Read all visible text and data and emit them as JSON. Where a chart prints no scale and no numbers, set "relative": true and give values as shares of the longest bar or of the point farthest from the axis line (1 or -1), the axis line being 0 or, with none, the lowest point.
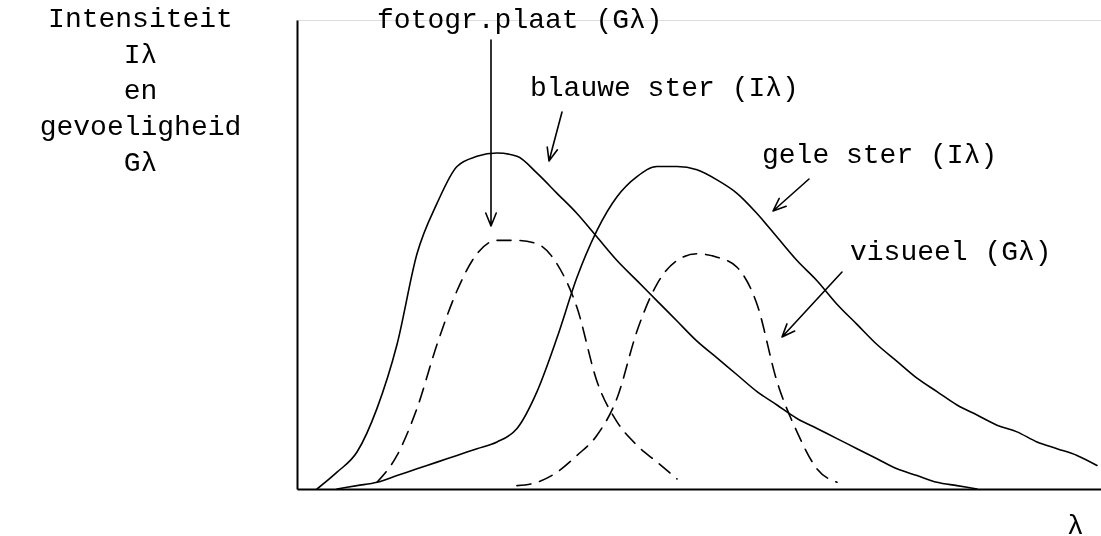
{
  "chart_data": {
    "type": "line",
    "relative": true,
    "ylabel": "Intensiteit\nIλ\nen\ngevoeligheid\nGλ",
    "xlabel": "λ",
    "annotations": [
      "fotogr.plaat (Gλ)"
    ],
    "categories": [
      null,
      null,
      null,
      null,
      null,
      null,
      null,
      null,
      null,
      null,
      null,
      null,
      null,
      null,
      null,
      null,
      null,
      null,
      null,
      null,
      null,
      null,
      null,
      null,
      null,
      null,
      null,
      null,
      null,
      null,
      null,
      null,
      null,
      null,
      null,
      null,
      null,
      null,
      null,
      null
    ],
    "series": [
      {
        "name": "blauwe ster (Iλ)",
        "color": "#000000",
        "line_style": "solid",
        "values": [
          0,
          0.05,
          0.11,
          0.24,
          0.43,
          0.7,
          0.85,
          0.96,
          0.99,
          1.0,
          0.99,
          0.94,
          0.88,
          0.82,
          0.75,
          0.68,
          0.62,
          0.56,
          0.5,
          0.44,
          0.39,
          0.34,
          0.29,
          0.25,
          0.21,
          0.18,
          0.15,
          0.12,
          0.09,
          0.06,
          0.04,
          0.02,
          0.01,
          0,
          null,
          null,
          null,
          null,
          null,
          null
        ]
      },
      {
        "name": "gele ster (Iλ)",
        "color": "#000000",
        "line_style": "solid",
        "values": [
          null,
          0,
          0.01,
          0.02,
          0.04,
          0.06,
          0.08,
          0.1,
          0.12,
          0.14,
          0.18,
          0.29,
          0.45,
          0.63,
          0.77,
          0.87,
          0.93,
          0.96,
          0.96,
          0.95,
          0.92,
          0.88,
          0.82,
          0.75,
          0.68,
          0.62,
          0.55,
          0.49,
          0.43,
          0.38,
          0.33,
          0.29,
          0.25,
          0.22,
          0.19,
          0.17,
          0.14,
          0.12,
          0.1,
          0.07
        ]
      },
      {
        "color": "#000000",
        "line_style": "dashed",
        "values": [
          null,
          null,
          null,
          0.02,
          0.1,
          0.24,
          0.43,
          0.59,
          0.7,
          0.74,
          0.74,
          0.73,
          0.67,
          0.54,
          0.32,
          0.2,
          0.13,
          0.08,
          0.03,
          null,
          null,
          null,
          null,
          null,
          null,
          null,
          null,
          null,
          null,
          null,
          null,
          null,
          null,
          null,
          null,
          null,
          null,
          null,
          null,
          null
        ]
      },
      {
        "name": "visueel (Gλ)",
        "color": "#000000",
        "line_style": "dashed",
        "values": [
          null,
          null,
          null,
          null,
          null,
          null,
          null,
          null,
          null,
          null,
          0.01,
          0.02,
          0.05,
          0.1,
          0.16,
          0.27,
          0.47,
          0.61,
          0.68,
          0.7,
          0.69,
          0.66,
          0.55,
          0.32,
          0.17,
          0.06,
          0.02,
          null,
          null,
          null,
          null,
          null,
          null,
          null,
          null,
          null,
          null,
          null,
          null,
          null
        ]
      }
    ]
  }
}
